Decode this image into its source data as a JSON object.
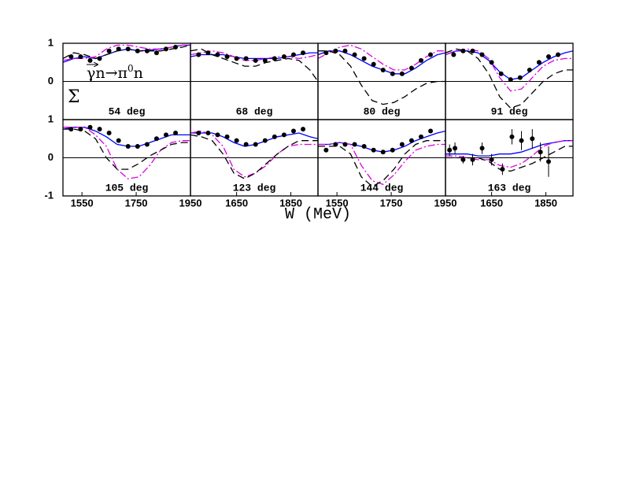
{
  "x_label": "W (MeV)",
  "y_label": "Σ",
  "reaction": [
    "γ",
    "n→π",
    "0",
    "n"
  ],
  "chart_data": [
    {
      "type": "line",
      "label": "54 deg",
      "xlim": [
        1480,
        1950
      ],
      "ylim": [
        -1,
        1
      ],
      "yticks": [
        0,
        1
      ],
      "curve_x": [
        1480,
        1520,
        1560,
        1600,
        1640,
        1680,
        1720,
        1760,
        1800,
        1840,
        1880,
        1920,
        1950
      ],
      "series": [
        {
          "color": "#0000ff",
          "style": "solid",
          "values": [
            0.5,
            0.6,
            0.65,
            0.6,
            0.7,
            0.8,
            0.85,
            0.8,
            0.82,
            0.85,
            0.9,
            0.95,
            0.95
          ]
        },
        {
          "color": "#dd00dd",
          "style": "dashdot",
          "values": [
            0.55,
            0.6,
            0.6,
            0.65,
            0.85,
            0.95,
            0.95,
            0.9,
            0.85,
            0.85,
            0.9,
            0.95,
            0.95
          ]
        },
        {
          "color": "#000000",
          "style": "dashed",
          "values": [
            0.6,
            0.75,
            0.7,
            0.6,
            0.7,
            0.8,
            0.85,
            0.8,
            0.8,
            0.8,
            0.85,
            0.9,
            0.95
          ]
        }
      ],
      "points": {
        "x": [
          1510,
          1545,
          1580,
          1615,
          1650,
          1685,
          1720,
          1755,
          1790,
          1825,
          1860,
          1895
        ],
        "values": [
          0.65,
          0.65,
          0.55,
          0.6,
          0.8,
          0.85,
          0.85,
          0.8,
          0.8,
          0.75,
          0.85,
          0.9
        ]
      }
    },
    {
      "type": "line",
      "label": "68 deg",
      "xlim": [
        1480,
        1950
      ],
      "ylim": [
        -1,
        1
      ],
      "curve_x": [
        1480,
        1520,
        1560,
        1600,
        1640,
        1680,
        1720,
        1760,
        1800,
        1840,
        1880,
        1920,
        1950
      ],
      "series": [
        {
          "color": "#0000ff",
          "style": "solid",
          "values": [
            0.65,
            0.7,
            0.7,
            0.7,
            0.65,
            0.6,
            0.6,
            0.6,
            0.6,
            0.65,
            0.7,
            0.75,
            0.75
          ]
        },
        {
          "color": "#dd00dd",
          "style": "dashdot",
          "values": [
            0.7,
            0.75,
            0.8,
            0.75,
            0.65,
            0.55,
            0.55,
            0.6,
            0.65,
            0.65,
            0.6,
            0.65,
            0.7
          ]
        },
        {
          "color": "#000000",
          "style": "dashed",
          "values": [
            0.8,
            0.85,
            0.7,
            0.6,
            0.5,
            0.4,
            0.4,
            0.5,
            0.55,
            0.6,
            0.55,
            0.3,
            0.0
          ]
        }
      ],
      "points": {
        "x": [
          1510,
          1545,
          1580,
          1615,
          1650,
          1685,
          1720,
          1755,
          1790,
          1825,
          1860,
          1895
        ],
        "values": [
          0.7,
          0.75,
          0.7,
          0.65,
          0.6,
          0.6,
          0.55,
          0.55,
          0.6,
          0.65,
          0.7,
          0.75
        ]
      }
    },
    {
      "type": "line",
      "label": "80 deg",
      "xlim": [
        1480,
        1950
      ],
      "ylim": [
        -1,
        1
      ],
      "curve_x": [
        1480,
        1520,
        1560,
        1600,
        1640,
        1680,
        1720,
        1760,
        1800,
        1840,
        1880,
        1920,
        1950
      ],
      "series": [
        {
          "color": "#0000ff",
          "style": "solid",
          "values": [
            0.7,
            0.8,
            0.8,
            0.7,
            0.55,
            0.4,
            0.3,
            0.2,
            0.2,
            0.35,
            0.55,
            0.7,
            0.75
          ]
        },
        {
          "color": "#dd00dd",
          "style": "dashdot",
          "values": [
            0.6,
            0.75,
            0.9,
            0.95,
            0.85,
            0.65,
            0.45,
            0.3,
            0.3,
            0.45,
            0.65,
            0.8,
            0.8
          ]
        },
        {
          "color": "#000000",
          "style": "dashed",
          "values": [
            0.8,
            0.8,
            0.7,
            0.4,
            -0.1,
            -0.5,
            -0.6,
            -0.55,
            -0.4,
            -0.2,
            -0.05,
            0.0,
            0.0
          ]
        }
      ],
      "points": {
        "x": [
          1510,
          1545,
          1580,
          1615,
          1650,
          1685,
          1720,
          1755,
          1790,
          1825,
          1860,
          1895
        ],
        "values": [
          0.75,
          0.8,
          0.8,
          0.7,
          0.6,
          0.45,
          0.3,
          0.2,
          0.2,
          0.35,
          0.55,
          0.7
        ]
      }
    },
    {
      "type": "line",
      "label": "91 deg",
      "xlim": [
        1480,
        1950
      ],
      "ylim": [
        -1,
        1
      ],
      "curve_x": [
        1480,
        1520,
        1560,
        1600,
        1640,
        1680,
        1720,
        1760,
        1800,
        1840,
        1880,
        1920,
        1950
      ],
      "series": [
        {
          "color": "#0000ff",
          "style": "solid",
          "values": [
            0.7,
            0.8,
            0.8,
            0.75,
            0.55,
            0.25,
            0.05,
            0.1,
            0.3,
            0.5,
            0.65,
            0.75,
            0.8
          ]
        },
        {
          "color": "#dd00dd",
          "style": "dashdot",
          "values": [
            0.7,
            0.8,
            0.85,
            0.8,
            0.6,
            0.1,
            -0.25,
            -0.2,
            0.1,
            0.4,
            0.55,
            0.6,
            0.6
          ]
        },
        {
          "color": "#000000",
          "style": "dashed",
          "values": [
            0.75,
            0.85,
            0.8,
            0.6,
            0.2,
            -0.4,
            -0.7,
            -0.6,
            -0.3,
            0.0,
            0.2,
            0.3,
            0.3
          ]
        }
      ],
      "points": {
        "x": [
          1510,
          1545,
          1580,
          1615,
          1650,
          1685,
          1720,
          1755,
          1790,
          1825,
          1860,
          1895
        ],
        "values": [
          0.7,
          0.8,
          0.8,
          0.7,
          0.5,
          0.2,
          0.05,
          0.1,
          0.3,
          0.5,
          0.65,
          0.7
        ]
      }
    },
    {
      "type": "line",
      "label": "105 deg",
      "xlim": [
        1480,
        1950
      ],
      "ylim": [
        -1,
        1
      ],
      "yticks": [
        -1,
        0,
        1
      ],
      "xticks": [
        1550,
        1750,
        1950
      ],
      "curve_x": [
        1480,
        1520,
        1560,
        1600,
        1640,
        1680,
        1720,
        1760,
        1800,
        1840,
        1880,
        1920,
        1950
      ],
      "series": [
        {
          "color": "#0000ff",
          "style": "solid",
          "values": [
            0.75,
            0.8,
            0.8,
            0.7,
            0.55,
            0.35,
            0.3,
            0.3,
            0.4,
            0.5,
            0.6,
            0.6,
            0.6
          ]
        },
        {
          "color": "#dd00dd",
          "style": "dashdot",
          "values": [
            0.8,
            0.8,
            0.8,
            0.6,
            0.3,
            -0.3,
            -0.55,
            -0.5,
            -0.2,
            0.2,
            0.4,
            0.45,
            0.45
          ]
        },
        {
          "color": "#000000",
          "style": "dashed",
          "values": [
            0.75,
            0.75,
            0.7,
            0.5,
            0.0,
            -0.3,
            -0.3,
            -0.15,
            0.05,
            0.2,
            0.35,
            0.4,
            0.4
          ]
        }
      ],
      "points": {
        "x": [
          1510,
          1545,
          1580,
          1615,
          1650,
          1685,
          1720,
          1755,
          1790,
          1825,
          1860,
          1895
        ],
        "values": [
          0.75,
          0.75,
          0.8,
          0.75,
          0.65,
          0.45,
          0.3,
          0.3,
          0.35,
          0.5,
          0.6,
          0.65
        ]
      }
    },
    {
      "type": "line",
      "label": "123 deg",
      "xlim": [
        1480,
        1950
      ],
      "ylim": [
        -1,
        1
      ],
      "xticks": [
        1650,
        1850
      ],
      "curve_x": [
        1480,
        1520,
        1560,
        1600,
        1640,
        1680,
        1720,
        1760,
        1800,
        1840,
        1880,
        1920,
        1950
      ],
      "series": [
        {
          "color": "#0000ff",
          "style": "solid",
          "values": [
            0.65,
            0.65,
            0.65,
            0.55,
            0.4,
            0.3,
            0.35,
            0.45,
            0.55,
            0.6,
            0.65,
            0.55,
            0.5
          ]
        },
        {
          "color": "#dd00dd",
          "style": "dashdot",
          "values": [
            0.65,
            0.7,
            0.6,
            0.3,
            -0.3,
            -0.5,
            -0.4,
            -0.2,
            0.1,
            0.3,
            0.35,
            0.35,
            0.35
          ]
        },
        {
          "color": "#000000",
          "style": "dashed",
          "values": [
            0.6,
            0.55,
            0.45,
            0.1,
            -0.4,
            -0.55,
            -0.4,
            -0.15,
            0.1,
            0.3,
            0.45,
            0.45,
            0.45
          ]
        }
      ],
      "points": {
        "x": [
          1510,
          1545,
          1580,
          1615,
          1650,
          1685,
          1720,
          1755,
          1790,
          1825,
          1860,
          1895
        ],
        "values": [
          0.65,
          0.65,
          0.6,
          0.55,
          0.45,
          0.35,
          0.35,
          0.45,
          0.55,
          0.6,
          0.7,
          0.75
        ]
      }
    },
    {
      "type": "line",
      "label": "144 deg",
      "xlim": [
        1480,
        1950
      ],
      "ylim": [
        -1,
        1
      ],
      "xticks": [
        1550,
        1750,
        1950
      ],
      "curve_x": [
        1480,
        1520,
        1560,
        1600,
        1640,
        1680,
        1720,
        1760,
        1800,
        1840,
        1880,
        1920,
        1950
      ],
      "series": [
        {
          "color": "#0000ff",
          "style": "solid",
          "values": [
            0.35,
            0.35,
            0.4,
            0.35,
            0.3,
            0.2,
            0.15,
            0.2,
            0.3,
            0.45,
            0.55,
            0.65,
            0.7
          ]
        },
        {
          "color": "#dd00dd",
          "style": "dashdot",
          "values": [
            0.35,
            0.35,
            0.4,
            0.35,
            -0.2,
            -0.6,
            -0.7,
            -0.45,
            -0.1,
            0.2,
            0.3,
            0.35,
            0.35
          ]
        },
        {
          "color": "#000000",
          "style": "dashed",
          "values": [
            0.3,
            0.3,
            0.3,
            0.1,
            -0.5,
            -0.75,
            -0.6,
            -0.3,
            0.1,
            0.35,
            0.45,
            0.45,
            0.45
          ]
        }
      ],
      "points": {
        "x": [
          1510,
          1545,
          1580,
          1615,
          1650,
          1685,
          1720,
          1755,
          1790,
          1825,
          1860,
          1895
        ],
        "values": [
          0.2,
          0.35,
          0.35,
          0.35,
          0.3,
          0.2,
          0.15,
          0.2,
          0.35,
          0.45,
          0.55,
          0.7
        ]
      }
    },
    {
      "type": "line",
      "label": "163 deg",
      "xlim": [
        1480,
        1950
      ],
      "ylim": [
        -1,
        1
      ],
      "xticks": [
        1650,
        1850
      ],
      "curve_x": [
        1480,
        1520,
        1560,
        1600,
        1640,
        1680,
        1720,
        1760,
        1800,
        1840,
        1880,
        1920,
        1950
      ],
      "series": [
        {
          "color": "#0000ff",
          "style": "solid",
          "values": [
            0.1,
            0.1,
            0.1,
            0.05,
            0.05,
            0.1,
            0.1,
            0.15,
            0.25,
            0.35,
            0.4,
            0.45,
            0.45
          ]
        },
        {
          "color": "#dd00dd",
          "style": "dashdot",
          "values": [
            0.05,
            0.05,
            0.0,
            -0.05,
            -0.05,
            -0.2,
            -0.25,
            -0.15,
            0.05,
            0.3,
            0.4,
            0.45,
            0.45
          ]
        },
        {
          "color": "#000000",
          "style": "dashed",
          "values": [
            0.0,
            0.0,
            0.0,
            0.0,
            -0.1,
            -0.3,
            -0.35,
            -0.25,
            -0.15,
            0.0,
            0.15,
            0.3,
            0.3
          ]
        }
      ],
      "points": {
        "x": [
          1495,
          1515,
          1545,
          1580,
          1615,
          1650,
          1690,
          1725,
          1760,
          1800,
          1830,
          1860
        ],
        "values": [
          0.2,
          0.25,
          -0.05,
          -0.05,
          0.25,
          -0.05,
          -0.3,
          0.55,
          0.45,
          0.5,
          0.15,
          -0.1
        ],
        "errors": [
          0.15,
          0.15,
          0.1,
          0.15,
          0.15,
          0.15,
          0.15,
          0.2,
          0.25,
          0.25,
          0.25,
          0.4
        ]
      }
    }
  ]
}
